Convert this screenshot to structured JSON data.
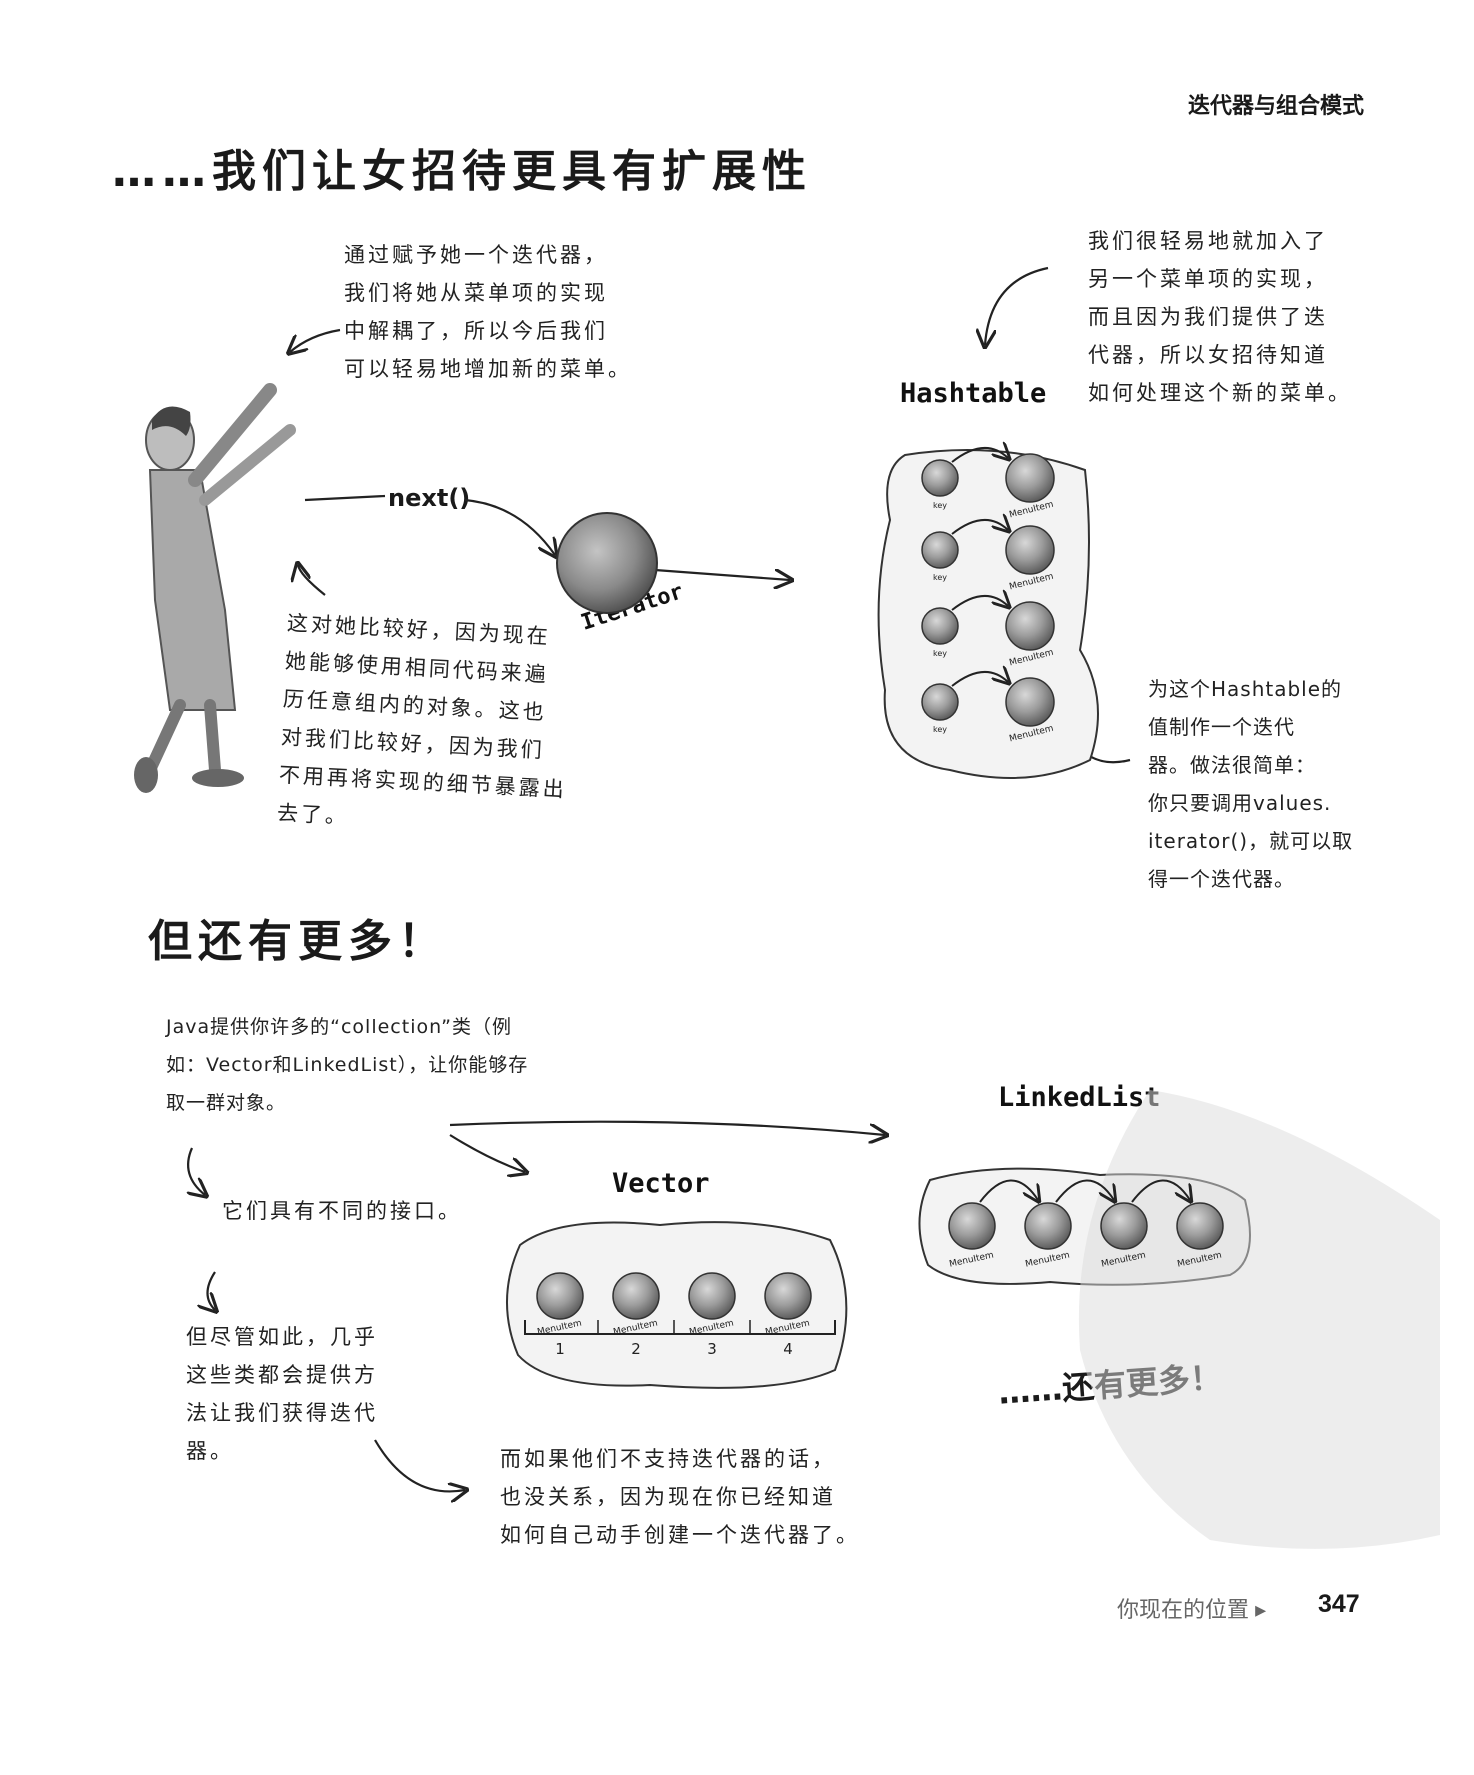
{
  "header": {
    "section": "迭代器与组合模式"
  },
  "title_top": "……我们让女招待更具有扩展性",
  "title_more": "但还有更多！",
  "note_decouple": [
    "通过赋予她一个迭代器，",
    "我们将她从菜单项的实现",
    "中解耦了，所以今后我们",
    "可以轻易地增加新的菜单。"
  ],
  "note_hashtable_add": [
    "我们很轻易地就加入了",
    "另一个菜单项的实现，",
    "而且因为我们提供了迭",
    "代器，所以女招待知道",
    "如何处理这个新的菜单。"
  ],
  "note_good": [
    "这对她比较好，因为现在",
    "她能够使用相同代码来遍",
    "历任意组内的对象。这也",
    "对我们比较好，因为我们",
    "不用再将实现的细节暴露出",
    "去了。"
  ],
  "note_values": [
    "为这个Hashtable的",
    "值制作一个迭代",
    "器。做法很简单：",
    "你只要调用values.",
    "iterator()，就可以取",
    "得一个迭代器。"
  ],
  "note_java": [
    "Java提供你许多的“collection”类（例",
    "如：Vector和LinkedList），让你能够存",
    "取一群对象。"
  ],
  "note_interfaces": "它们具有不同的接口。",
  "note_most": [
    "但尽管如此，几乎",
    "这些类都会提供方",
    "法让我们获得迭代",
    "器。"
  ],
  "note_diy": [
    "而如果他们不支持迭代器的话，",
    "也没关系，因为现在你已经知道",
    "如何自己动手创建一个迭代器了。"
  ],
  "diagram": {
    "next_label": "next()",
    "iterator_label": "Iterator",
    "hashtable_label": "Hashtable",
    "hashtable_key": "key",
    "menuitem": "MenuItem",
    "vector_label": "Vector",
    "vector_indices": [
      "1",
      "2",
      "3",
      "4"
    ],
    "linkedlist_label": "LinkedList",
    "more_label": "……还有更多！"
  },
  "footer": {
    "label": "你现在的位置 ▸",
    "page": "347"
  }
}
